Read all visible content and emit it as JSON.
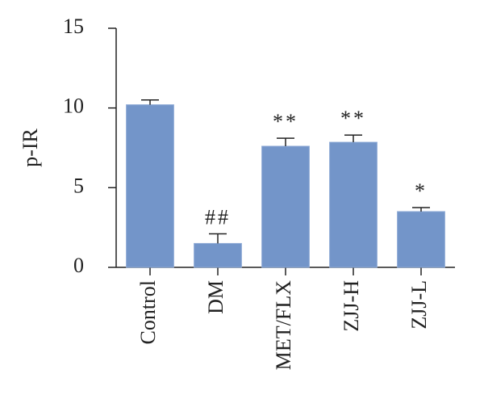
{
  "chart_data": {
    "type": "bar",
    "ylabel": "p-IR",
    "categories": [
      "Control",
      "DM",
      "MET/FLX",
      "ZJJ-H",
      "ZJJ-L"
    ],
    "values": [
      10.2,
      1.5,
      7.6,
      7.85,
      3.5
    ],
    "errors": [
      0.3,
      0.6,
      0.5,
      0.45,
      0.25
    ],
    "annotations": [
      null,
      "##",
      "**",
      "**",
      "*"
    ],
    "color": "#7395c9",
    "ylim": [
      0,
      15
    ],
    "yticks": [
      0,
      5,
      10,
      15
    ],
    "grid": false
  }
}
